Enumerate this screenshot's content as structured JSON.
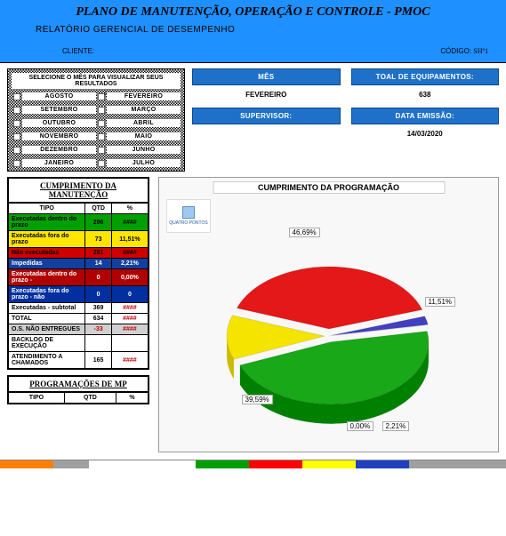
{
  "header": {
    "title": "PLANO DE MANUTENÇÃO, OPERAÇÃO E CONTROLE - PMOC",
    "subtitle": "RELATÓRIO GERENCIAL DE DESEMPENHO",
    "cliente_label": "CLIENTE:",
    "codigo_label": "CÓDIGO:",
    "codigo_value": "SHº1"
  },
  "month_selector": {
    "header": "SELECIONE O MÊS PARA VISUALIZAR SEUS RESULTADOS",
    "months": [
      "AGOSTO",
      "FEVEREIRO",
      "SETEMBRO",
      "MARÇO",
      "OUTUBRO",
      "ABRIL",
      "NOVEMBRO",
      "MAIO",
      "DEZEMBRO",
      "JUNHO",
      "JANEIRO",
      "JULHO"
    ]
  },
  "info": {
    "mes_label": "MÊS",
    "mes_value": "FEVEREIRO",
    "total_label": "TOAL DE EQUIPAMENTOS:",
    "total_value": "638",
    "supervisor_label": "SUPERVISOR:",
    "supervisor_value": "",
    "data_label": "DATA EMISSÃO:",
    "data_value": "14/03/2020"
  },
  "table1": {
    "caption": "CUMPRIMENTO DA MANUTENÇÃO",
    "cols": [
      "TIPO",
      "QTD",
      "%"
    ],
    "rows": [
      {
        "cls": "row-green",
        "c": [
          "Executadas dentro do prazo",
          "296",
          "####"
        ]
      },
      {
        "cls": "row-yellow",
        "c": [
          "Executadas fora do prazo",
          "73",
          "11,51%"
        ]
      },
      {
        "cls": "row-red",
        "c": [
          "Não executadas",
          "251",
          "####"
        ]
      },
      {
        "cls": "row-blue",
        "c": [
          "Impedidas",
          "14",
          "2,21%"
        ]
      },
      {
        "cls": "row-darkred",
        "c": [
          "Executadas dentro do prazo -",
          "0",
          "0,00%"
        ]
      },
      {
        "cls": "row-darkblue",
        "c": [
          "Executadas fora do prazo - não",
          "0",
          "0"
        ]
      },
      {
        "cls": "row-white",
        "c": [
          "Executadas - subtotal",
          "369",
          "####"
        ]
      },
      {
        "cls": "row-white",
        "c": [
          "TOTAL",
          "634",
          "####"
        ]
      },
      {
        "cls": "row-gray",
        "c": [
          "O.S. NÃO ENTREGUES",
          "-33",
          "####"
        ],
        "neg": true
      },
      {
        "cls": "row-white",
        "c": [
          "BACKLOG DE EXECUÇÃO",
          "",
          ""
        ]
      },
      {
        "cls": "row-white",
        "c": [
          "ATENDIMENTO A CHAMADOS",
          "165",
          "####"
        ]
      }
    ]
  },
  "table2": {
    "caption": "PROGRAMAÇÕES DE MP",
    "cols": [
      "TIPO",
      "QTD",
      "%"
    ]
  },
  "chart": {
    "title": "CUMPRIMENTO DA PROGRAMAÇÃO",
    "logo_text": "QUATRO PONTOS",
    "slices": [
      {
        "label": "46,69%",
        "color": "#18a818",
        "value": 46.69
      },
      {
        "label": "11,51%",
        "color": "#f5e400",
        "value": 11.51
      },
      {
        "label": "39,59%",
        "color": "#e41818",
        "value": 39.59
      },
      {
        "label": "2,21%",
        "color": "#4040c0",
        "value": 2.21
      },
      {
        "label": "0,00%",
        "color": "#801818",
        "value": 0.0
      }
    ],
    "bg": "#f8f8f8"
  },
  "taskbar_colors": [
    "#ff8000",
    "#a0a0a0",
    "#ffffff",
    "#00a000",
    "#ff0000",
    "#ffff00",
    "#2040c0",
    "#a0a0a0"
  ]
}
